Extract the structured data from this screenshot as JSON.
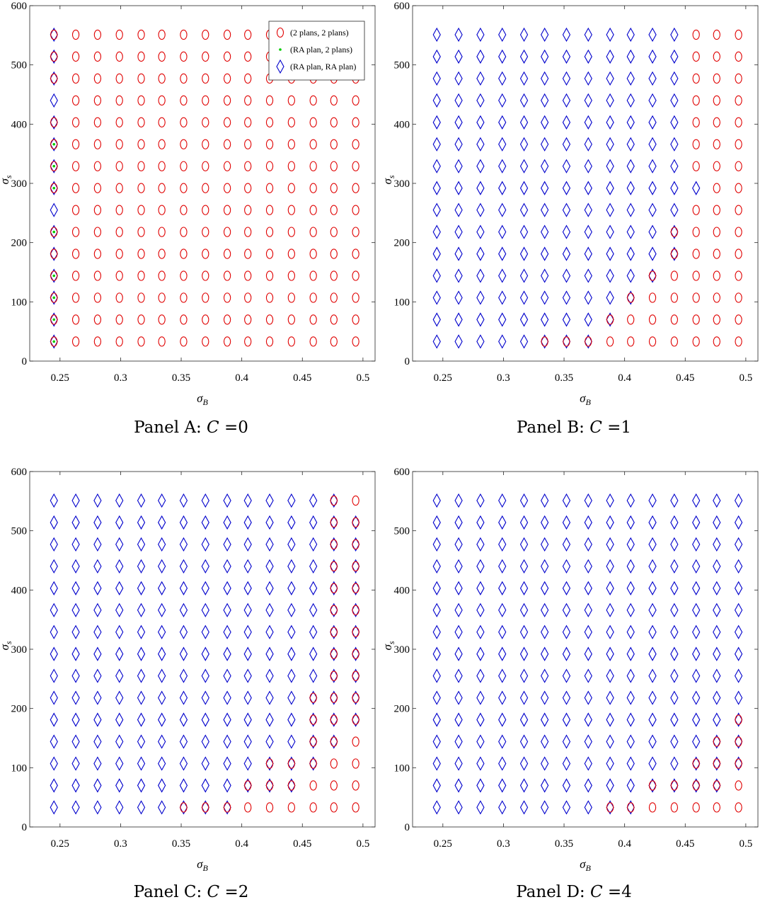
{
  "legend": [
    {
      "label": "(2 plans, 2 plans)",
      "marker": "circle",
      "color": "#e00000"
    },
    {
      "label": "(RA plan, 2 plans)",
      "marker": "dot",
      "color": "#00cc00"
    },
    {
      "label": "(RA plan, RA plan)",
      "marker": "diamond",
      "color": "#0000cc"
    }
  ],
  "chart_data": [
    {
      "type": "scatter",
      "caption_prefix": "Panel A: ",
      "caption_var": "C",
      "caption_value": "=0",
      "xlabel": "σ_B",
      "ylabel": "σ_s",
      "xlim": [
        0.225,
        0.51
      ],
      "ylim": [
        0,
        600
      ],
      "xticks": [
        0.25,
        0.3,
        0.35,
        0.4,
        0.45,
        0.5
      ],
      "xtick_labels": [
        "0.25",
        "0.3",
        "0.35",
        "0.4",
        "0.45",
        "0.5"
      ],
      "yticks": [
        0,
        100,
        200,
        300,
        400,
        500,
        600
      ],
      "ytick_labels": [
        "0",
        "100",
        "200",
        "300",
        "400",
        "500",
        "600"
      ],
      "x_grid": [
        0.245,
        0.263,
        0.281,
        0.299,
        0.317,
        0.334,
        0.352,
        0.37,
        0.388,
        0.405,
        0.423,
        0.441,
        0.459,
        0.476,
        0.494
      ],
      "y_grid": [
        33,
        70,
        107,
        144,
        181,
        218,
        255,
        292,
        329,
        366,
        403,
        440,
        477,
        514,
        551
      ],
      "legend_location": "top-right",
      "series": [
        {
          "name": "(2 plans, 2 plans)",
          "marker": "circle",
          "color": "#e00000",
          "cols": [
            [
              1,
              14
            ],
            [
              1,
              14
            ],
            [
              1,
              14
            ],
            [
              1,
              14
            ],
            [
              1,
              14
            ],
            [
              1,
              14
            ],
            [
              1,
              14
            ],
            [
              1,
              14
            ],
            [
              1,
              14
            ],
            [
              1,
              14
            ],
            [
              1,
              14
            ],
            [
              1,
              14
            ],
            [
              1,
              14
            ],
            [
              1,
              14
            ],
            [
              1,
              14
            ]
          ]
        },
        {
          "name": "(RA plan, 2 plans)",
          "marker": "dot",
          "color": "#00cc00",
          "rows": [
            0,
            1,
            2,
            3,
            5,
            7,
            8,
            9
          ]
        },
        {
          "name": "(RA plan, RA plan)",
          "marker": "diamond",
          "color": "#0000cc",
          "cols": [
            [
              0,
              0
            ],
            [
              0,
              0
            ],
            [
              0,
              0
            ],
            [
              0,
              0
            ],
            [
              0,
              0
            ],
            [
              0,
              0
            ],
            [
              0,
              0
            ],
            [
              0,
              0
            ],
            [
              0,
              0
            ],
            [
              0,
              0
            ],
            [
              0,
              0
            ],
            [
              0,
              0
            ],
            [
              0,
              0
            ],
            [
              0,
              0
            ],
            [
              0,
              0
            ]
          ]
        }
      ],
      "overlap_red_first_col": [
        0,
        1,
        2,
        3,
        4,
        5,
        7,
        8,
        9,
        10,
        12,
        13,
        14
      ]
    },
    {
      "type": "scatter",
      "caption_prefix": "Panel B: ",
      "caption_var": "C",
      "caption_value": "=1",
      "xlabel": "σ_B",
      "ylabel": "σ_s",
      "xlim": [
        0.225,
        0.51
      ],
      "ylim": [
        0,
        600
      ],
      "xticks": [
        0.25,
        0.3,
        0.35,
        0.4,
        0.45,
        0.5
      ],
      "xtick_labels": [
        "0.25",
        "0.3",
        "0.35",
        "0.4",
        "0.45",
        "0.5"
      ],
      "yticks": [
        0,
        100,
        200,
        300,
        400,
        500,
        600
      ],
      "ytick_labels": [
        "0",
        "100",
        "200",
        "300",
        "400",
        "500",
        "600"
      ],
      "x_grid": [
        0.245,
        0.263,
        0.281,
        0.299,
        0.317,
        0.334,
        0.352,
        0.37,
        0.388,
        0.405,
        0.423,
        0.441,
        0.459,
        0.476,
        0.494
      ],
      "y_grid": [
        33,
        70,
        107,
        144,
        181,
        218,
        255,
        292,
        329,
        366,
        403,
        440,
        477,
        514,
        551
      ],
      "blue_last": [
        7,
        8,
        9,
        10,
        11,
        11,
        11,
        12,
        11,
        11,
        11,
        11,
        11,
        11,
        11
      ],
      "red_first": [
        5,
        8,
        9,
        10,
        11,
        11,
        12,
        13,
        12,
        12,
        12,
        12,
        12,
        12,
        12
      ]
    },
    {
      "type": "scatter",
      "caption_prefix": "Panel C: ",
      "caption_var": "C",
      "caption_value": "=2",
      "xlabel": "σ_B",
      "ylabel": "σ_s",
      "xlim": [
        0.225,
        0.51
      ],
      "ylim": [
        0,
        600
      ],
      "xticks": [
        0.25,
        0.3,
        0.35,
        0.4,
        0.45,
        0.5
      ],
      "xtick_labels": [
        "0.25",
        "0.3",
        "0.35",
        "0.4",
        "0.45",
        "0.5"
      ],
      "yticks": [
        0,
        100,
        200,
        300,
        400,
        500,
        600
      ],
      "ytick_labels": [
        "0",
        "100",
        "200",
        "300",
        "400",
        "500",
        "600"
      ],
      "x_grid": [
        0.245,
        0.263,
        0.281,
        0.299,
        0.317,
        0.334,
        0.352,
        0.37,
        0.388,
        0.405,
        0.423,
        0.441,
        0.459,
        0.476,
        0.494
      ],
      "y_grid": [
        33,
        70,
        107,
        144,
        181,
        218,
        255,
        292,
        329,
        366,
        403,
        440,
        477,
        514,
        551
      ],
      "blue_last": [
        8,
        11,
        12,
        13,
        14,
        14,
        14,
        14,
        14,
        14,
        14,
        14,
        14,
        14,
        13
      ],
      "red_first": [
        6,
        9,
        10,
        12,
        12,
        12,
        13,
        13,
        13,
        13,
        13,
        13,
        13,
        13,
        13
      ]
    },
    {
      "type": "scatter",
      "caption_prefix": "Panel D: ",
      "caption_var": "C",
      "caption_value": "=4",
      "xlabel": "σ_B",
      "ylabel": "σ_s",
      "xlim": [
        0.225,
        0.51
      ],
      "ylim": [
        0,
        600
      ],
      "xticks": [
        0.25,
        0.3,
        0.35,
        0.4,
        0.45,
        0.5
      ],
      "xtick_labels": [
        "0.25",
        "0.3",
        "0.35",
        "0.4",
        "0.45",
        "0.5"
      ],
      "yticks": [
        0,
        100,
        200,
        300,
        400,
        500,
        600
      ],
      "ytick_labels": [
        "0",
        "100",
        "200",
        "300",
        "400",
        "500",
        "600"
      ],
      "x_grid": [
        0.245,
        0.263,
        0.281,
        0.299,
        0.317,
        0.334,
        0.352,
        0.37,
        0.388,
        0.405,
        0.423,
        0.441,
        0.459,
        0.476,
        0.494
      ],
      "y_grid": [
        33,
        70,
        107,
        144,
        181,
        218,
        255,
        292,
        329,
        366,
        403,
        440,
        477,
        514,
        551
      ],
      "blue_last": [
        9,
        13,
        14,
        14,
        14,
        14,
        14,
        14,
        14,
        14,
        14,
        14,
        14,
        14,
        14
      ],
      "red_first": [
        8,
        10,
        12,
        13,
        14,
        15,
        15,
        15,
        15,
        15,
        15,
        15,
        15,
        15,
        15
      ]
    }
  ]
}
